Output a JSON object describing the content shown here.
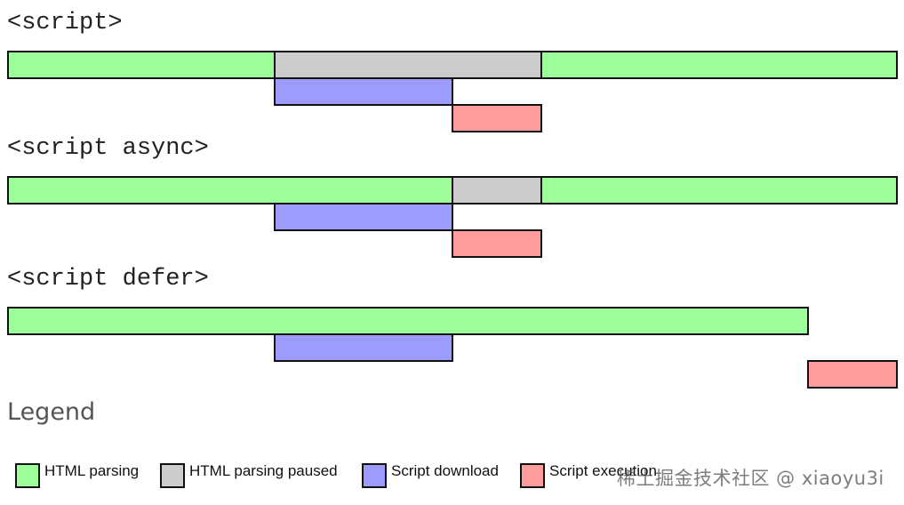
{
  "colors": {
    "html_parsing": "#9cff9c",
    "html_parsing_paused": "#cccccc",
    "script_download": "#9c9cff",
    "script_execution": "#ff9c9c"
  },
  "sections": [
    {
      "title": "<script>",
      "segments": [
        {
          "kind": "html_parsing",
          "start": 0,
          "end": 3
        },
        {
          "kind": "html_parsing_paused",
          "start": 3,
          "end": 6
        },
        {
          "kind": "html_parsing",
          "start": 6,
          "end": 10
        },
        {
          "kind": "script_download",
          "start": 3,
          "end": 5,
          "row": 2
        },
        {
          "kind": "script_execution",
          "start": 5,
          "end": 6,
          "row": 3
        }
      ]
    },
    {
      "title": "<script async>",
      "segments": [
        {
          "kind": "html_parsing",
          "start": 0,
          "end": 5
        },
        {
          "kind": "html_parsing_paused",
          "start": 5,
          "end": 6
        },
        {
          "kind": "html_parsing",
          "start": 6,
          "end": 10
        },
        {
          "kind": "script_download",
          "start": 3,
          "end": 5,
          "row": 2
        },
        {
          "kind": "script_execution",
          "start": 5,
          "end": 6,
          "row": 3
        }
      ]
    },
    {
      "title": "<script defer>",
      "segments": [
        {
          "kind": "html_parsing",
          "start": 0,
          "end": 9
        },
        {
          "kind": "script_download",
          "start": 3,
          "end": 5,
          "row": 2
        },
        {
          "kind": "script_execution",
          "start": 9,
          "end": 10,
          "row": 3
        }
      ]
    }
  ],
  "legend": {
    "title": "Legend",
    "items": [
      {
        "kind": "html_parsing",
        "label": "HTML parsing"
      },
      {
        "kind": "html_parsing_paused",
        "label": "HTML parsing paused"
      },
      {
        "kind": "script_download",
        "label": "Script download"
      },
      {
        "kind": "script_execution",
        "label": "Script execution"
      }
    ]
  },
  "watermark": "稀土掘金技术社区 @ xiaoyu3i"
}
